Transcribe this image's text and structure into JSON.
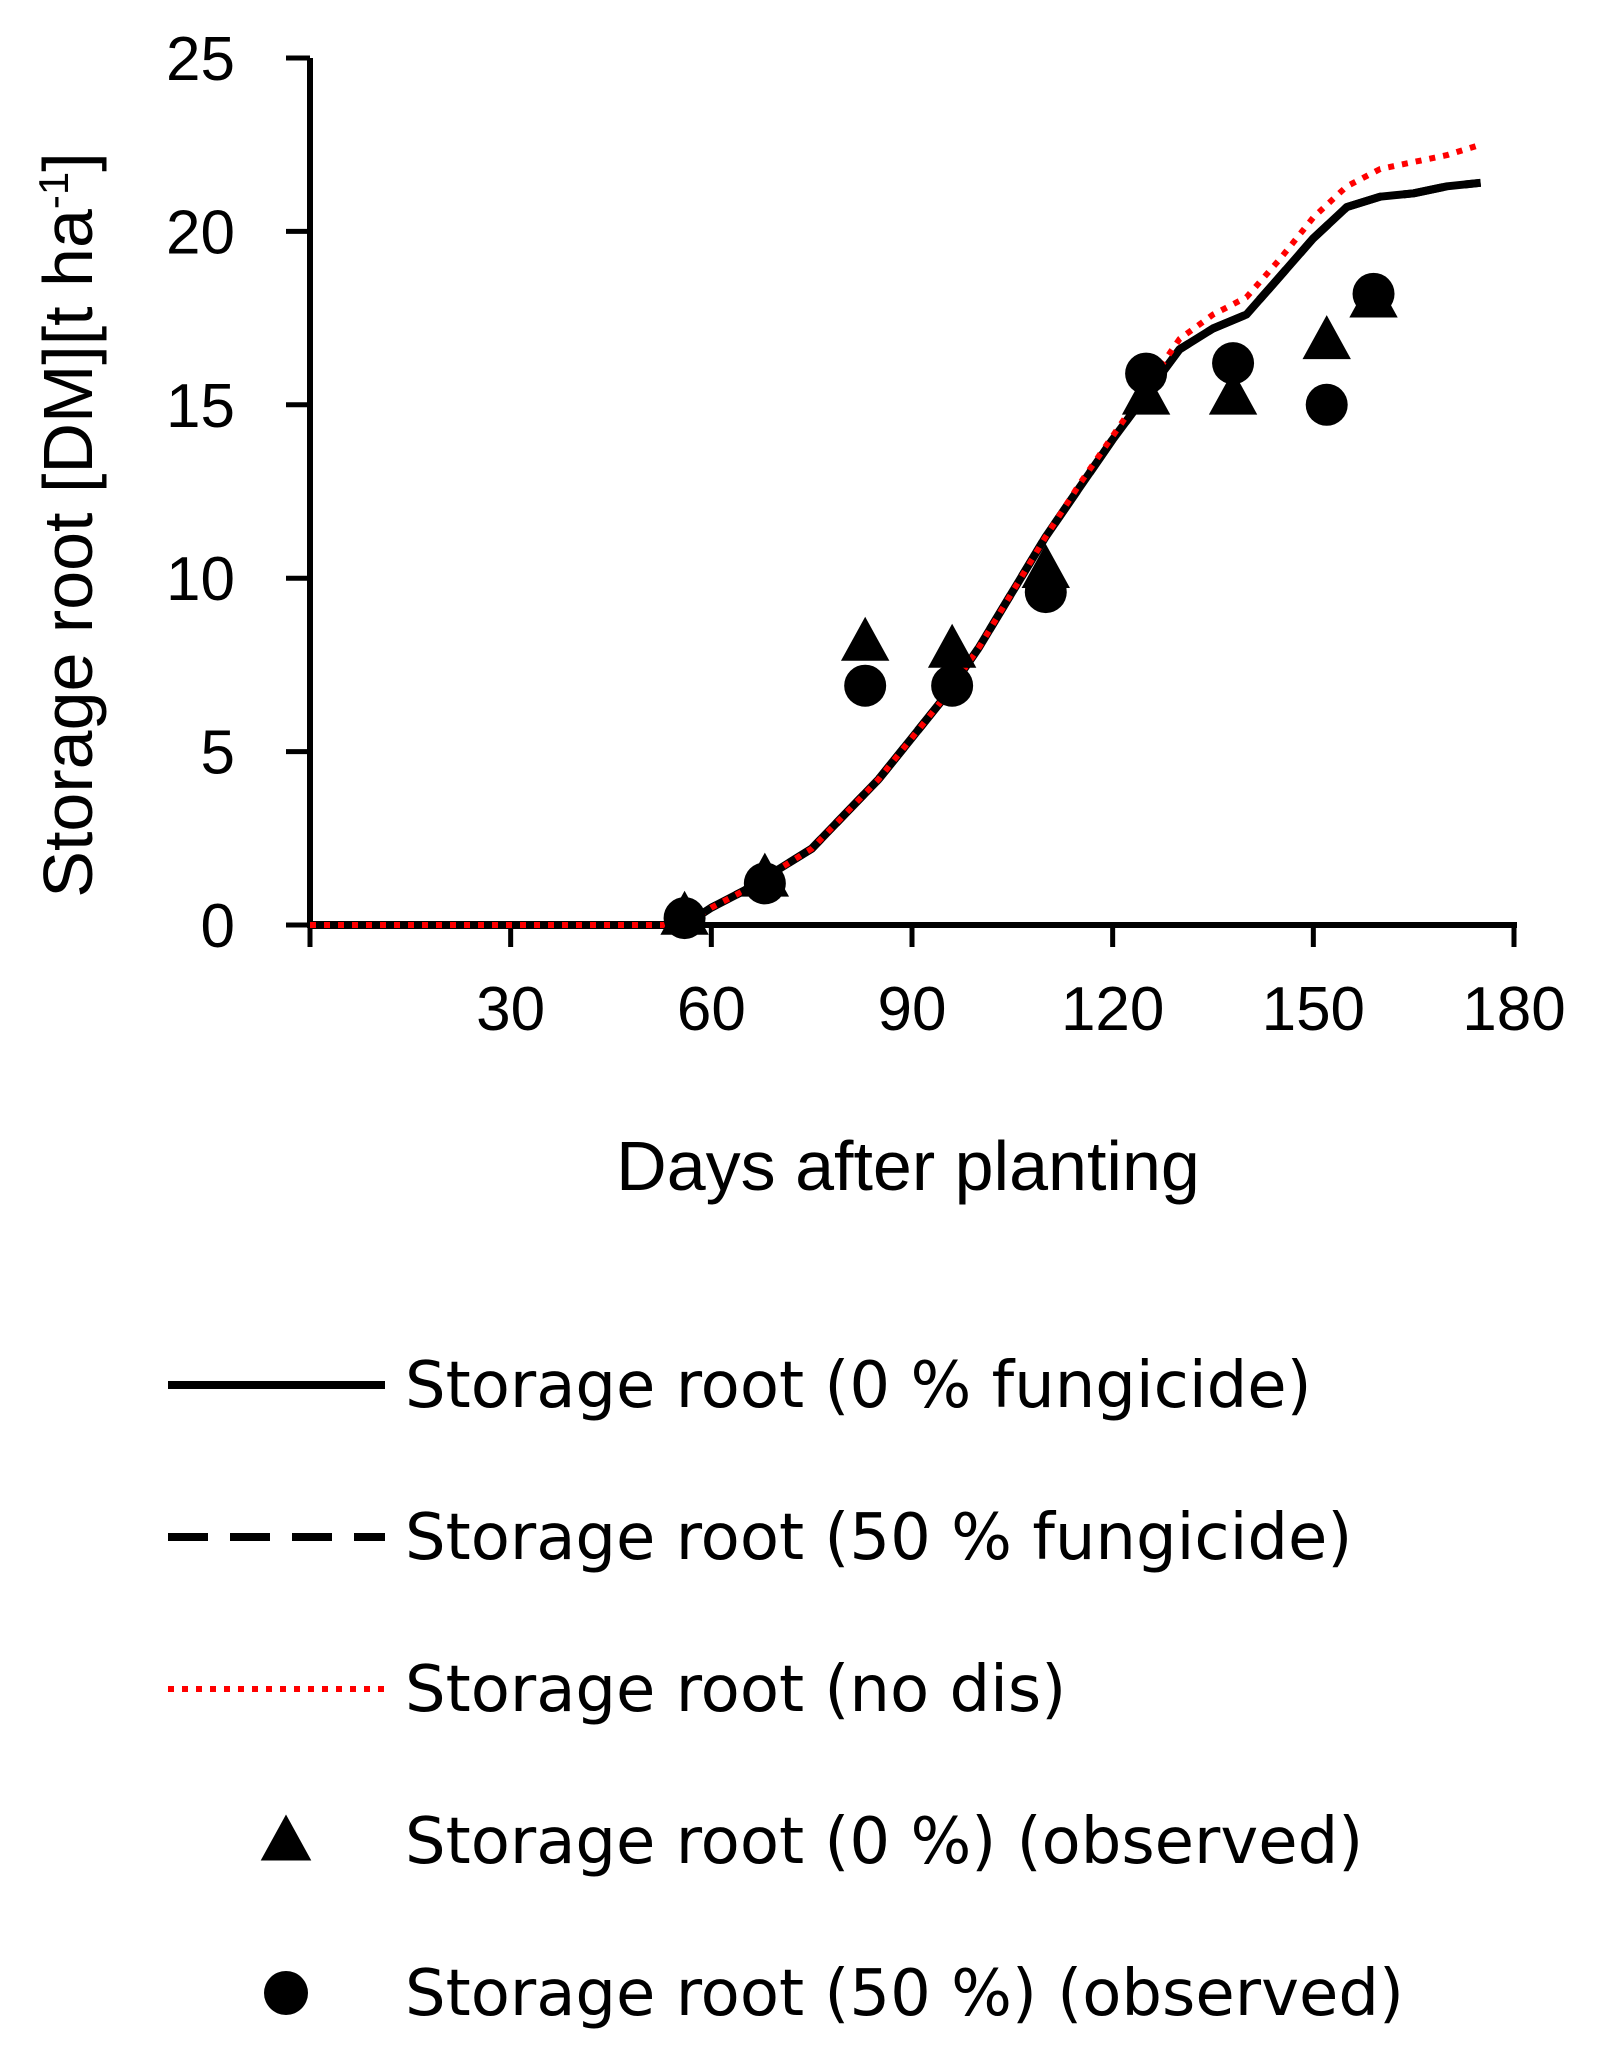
{
  "chart_data": {
    "type": "line",
    "xlabel": "Days after planting",
    "ylabel_main": "Storage root [DM][t ha",
    "ylabel_sup": "-1",
    "ylabel_end": "]",
    "xlim": [
      0,
      180
    ],
    "ylim": [
      0,
      25
    ],
    "xticks": [
      30,
      60,
      90,
      120,
      150,
      180
    ],
    "yticks": [
      0,
      5,
      10,
      15,
      20,
      25
    ],
    "grid": false,
    "legend_position": "bottom",
    "series": [
      {
        "name": "Storage root (0 %  fungicide)",
        "style": "solid",
        "color": "#000000",
        "x": [
          0,
          10,
          20,
          30,
          40,
          50,
          56,
          60,
          65,
          70,
          75,
          80,
          85,
          90,
          95,
          100,
          105,
          110,
          115,
          120,
          125,
          130,
          135,
          140,
          145,
          150,
          155,
          160,
          165,
          170,
          175
        ],
        "y": [
          0,
          0,
          0,
          0,
          0,
          0,
          0,
          0.5,
          1.0,
          1.6,
          2.2,
          3.2,
          4.2,
          5.4,
          6.6,
          8.0,
          9.6,
          11.2,
          12.6,
          14.0,
          15.3,
          16.6,
          17.2,
          17.6,
          18.7,
          19.8,
          20.7,
          21.0,
          21.1,
          21.3,
          21.4
        ]
      },
      {
        "name": "Storage root (50 % fungicide)",
        "style": "dashed",
        "color": "#000000",
        "x": [
          0,
          10,
          20,
          30,
          40,
          50,
          56,
          60,
          65,
          70,
          75,
          80,
          85,
          90,
          95,
          100,
          105,
          110,
          115,
          120,
          125,
          130,
          135,
          140,
          145,
          150,
          155,
          160,
          165,
          170,
          175
        ],
        "y": [
          0,
          0,
          0,
          0,
          0,
          0,
          0,
          0.5,
          1.0,
          1.6,
          2.2,
          3.2,
          4.2,
          5.4,
          6.6,
          8.0,
          9.6,
          11.2,
          12.6,
          14.0,
          15.3,
          16.6,
          17.2,
          17.6,
          18.7,
          19.8,
          20.7,
          21.0,
          21.1,
          21.3,
          21.4
        ]
      },
      {
        "name": "Storage root (no dis)",
        "style": "dotted",
        "color": "#ff0000",
        "x": [
          0,
          10,
          20,
          30,
          40,
          50,
          56,
          60,
          65,
          70,
          75,
          80,
          85,
          90,
          95,
          100,
          105,
          110,
          115,
          120,
          125,
          130,
          135,
          140,
          145,
          150,
          155,
          160,
          165,
          170,
          175
        ],
        "y": [
          0,
          0,
          0,
          0,
          0,
          0,
          0,
          0.5,
          1.0,
          1.6,
          2.2,
          3.2,
          4.2,
          5.4,
          6.6,
          8.0,
          9.6,
          11.2,
          12.7,
          14.1,
          15.5,
          16.9,
          17.6,
          18.1,
          19.2,
          20.4,
          21.3,
          21.8,
          22.0,
          22.2,
          22.5
        ]
      },
      {
        "name": "Storage root (0 %) (observed)",
        "style": "triangle",
        "color": "#000000",
        "x": [
          56,
          68,
          83,
          96,
          110,
          125,
          138,
          152,
          159
        ],
        "y": [
          0.2,
          1.3,
          8.1,
          7.9,
          10.2,
          15.2,
          15.2,
          16.8,
          18.0
        ]
      },
      {
        "name": "Storage root (50 %) (observed)",
        "style": "circle",
        "color": "#000000",
        "x": [
          56,
          68,
          83,
          96,
          110,
          125,
          138,
          152,
          159
        ],
        "y": [
          0.2,
          1.2,
          6.9,
          6.9,
          9.6,
          15.9,
          16.2,
          15.0,
          18.2
        ]
      }
    ]
  }
}
